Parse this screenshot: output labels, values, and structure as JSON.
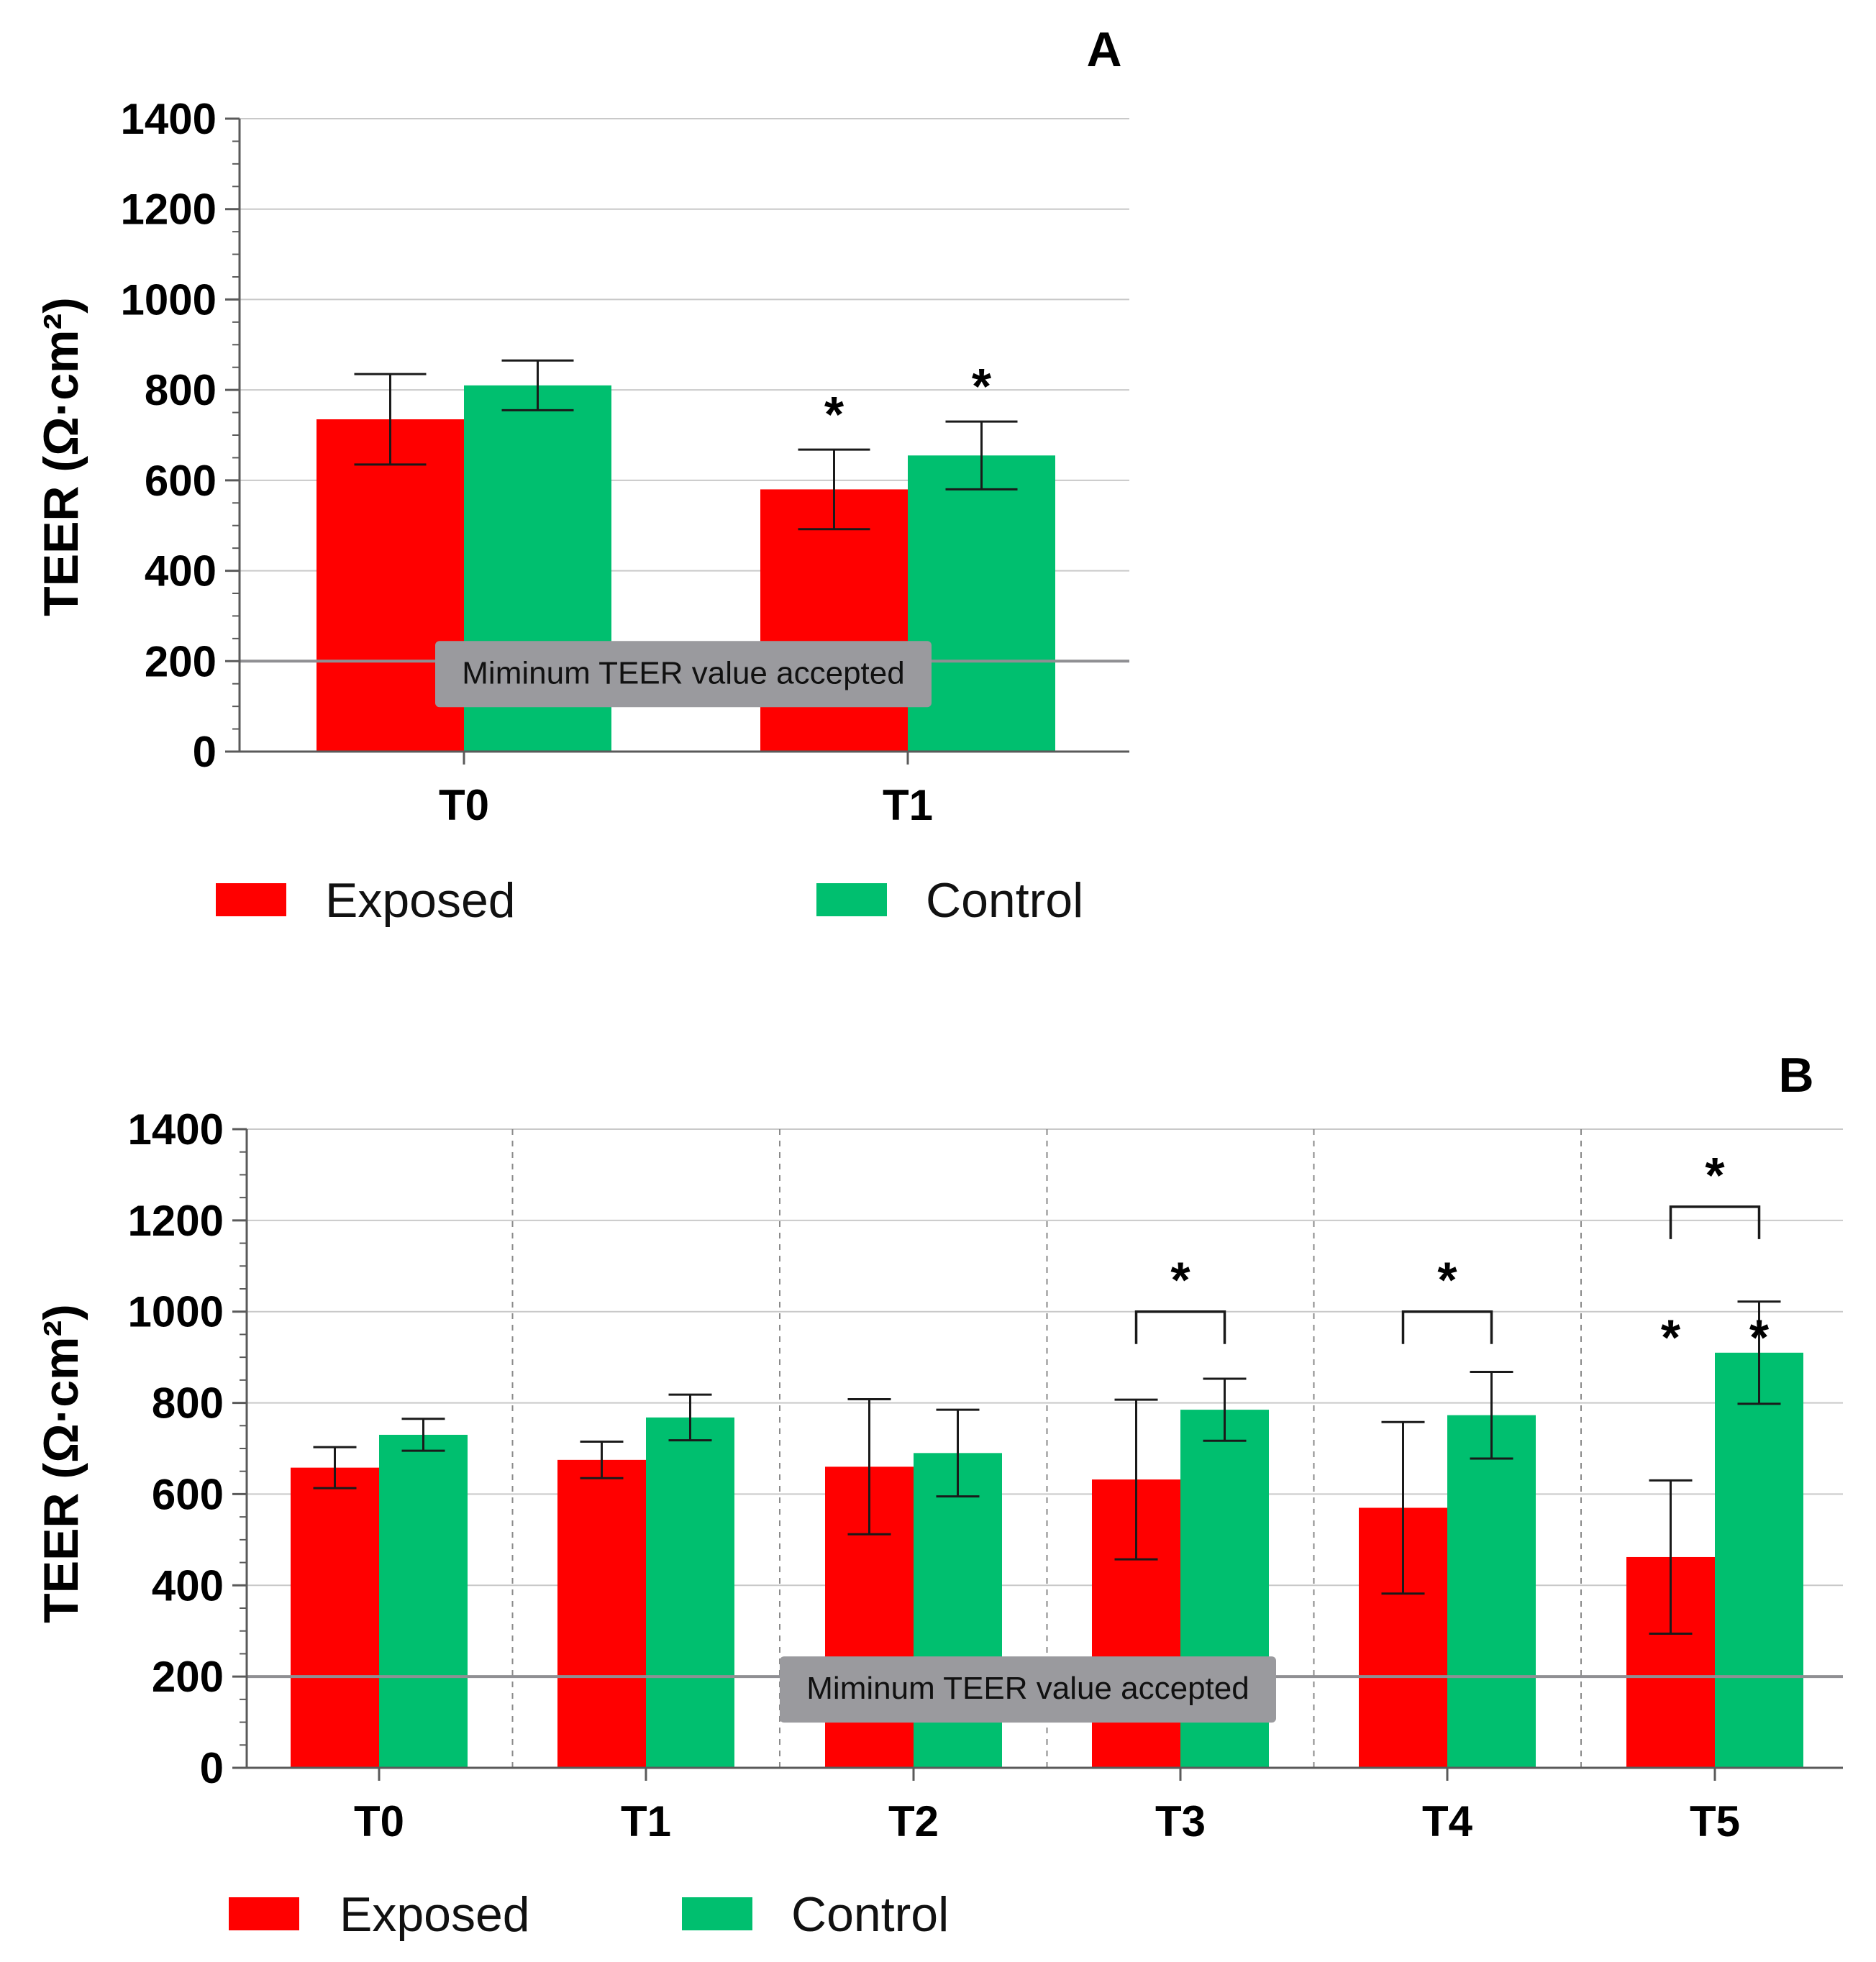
{
  "colors": {
    "exposed": "#ff0000",
    "control": "#00bf6f"
  },
  "chart_data": [
    {
      "type": "bar",
      "panel": "A",
      "categories": [
        "T0",
        "T1"
      ],
      "series": [
        {
          "name": "Exposed",
          "values": [
            735,
            580
          ],
          "errors": [
            100,
            88
          ]
        },
        {
          "name": "Control",
          "values": [
            810,
            655
          ],
          "errors": [
            55,
            75
          ]
        }
      ],
      "ylabel": "TEER (Ω·cm²)",
      "ylim": [
        0,
        1400
      ],
      "yticks": [
        0,
        200,
        400,
        600,
        800,
        1000,
        1200,
        1400
      ],
      "grid": true,
      "threshold": {
        "value": 200,
        "label": "Miminum TEER value accepted"
      },
      "significance": [
        {
          "category": "T1",
          "series": "Exposed",
          "label": "*"
        },
        {
          "category": "T1",
          "series": "Control",
          "label": "*"
        }
      ],
      "brackets": [],
      "legend": {
        "position": "bottom",
        "entries": [
          "Exposed",
          "Control"
        ]
      }
    },
    {
      "type": "bar",
      "panel": "B",
      "categories": [
        "T0",
        "T1",
        "T2",
        "T3",
        "T4",
        "T5"
      ],
      "series": [
        {
          "name": "Exposed",
          "values": [
            658,
            675,
            660,
            632,
            570,
            462
          ],
          "errors": [
            45,
            40,
            148,
            175,
            188,
            168
          ]
        },
        {
          "name": "Control",
          "values": [
            730,
            768,
            690,
            785,
            773,
            910
          ],
          "errors": [
            35,
            50,
            95,
            68,
            95,
            112
          ]
        }
      ],
      "ylabel": "TEER (Ω·cm²)",
      "ylim": [
        0,
        1400
      ],
      "yticks": [
        0,
        200,
        400,
        600,
        800,
        1000,
        1200,
        1400
      ],
      "grid": true,
      "threshold": {
        "value": 200,
        "label": "Miminum TEER value accepted"
      },
      "significance": [
        {
          "category": "T5",
          "series": "Exposed",
          "label": "*"
        },
        {
          "category": "T5",
          "series": "Control",
          "label": "*"
        }
      ],
      "brackets": [
        {
          "category": "T3",
          "level": 1000,
          "label": "*"
        },
        {
          "category": "T4",
          "level": 1000,
          "label": "*"
        },
        {
          "category": "T5",
          "level": 1230,
          "label": "*"
        }
      ],
      "legend": {
        "position": "bottom",
        "entries": [
          "Exposed",
          "Control"
        ]
      }
    }
  ]
}
